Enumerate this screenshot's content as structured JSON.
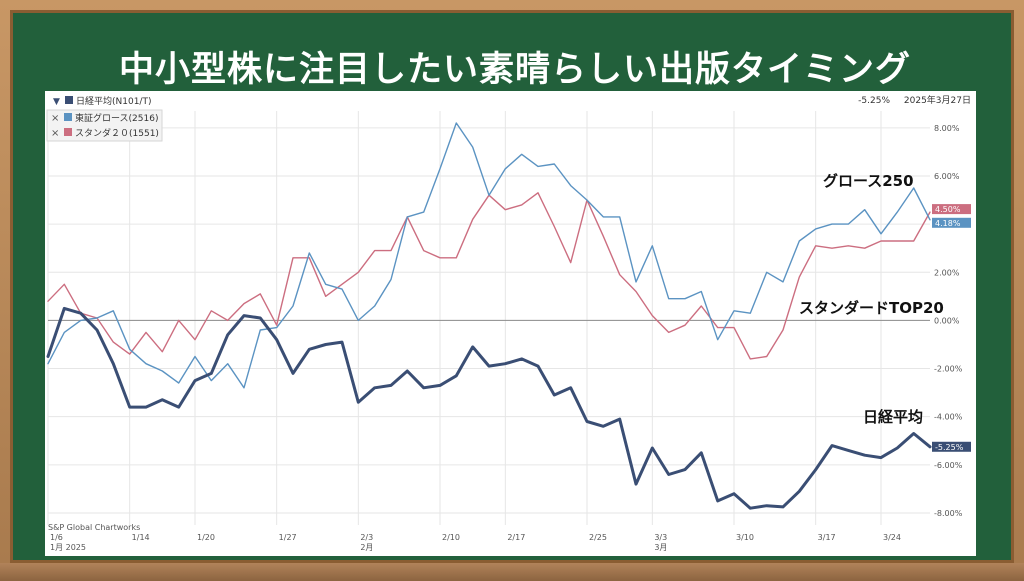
{
  "page": {
    "headline": "中小型株に注目したい素晴らしい出版タイミング"
  },
  "chart_data": {
    "type": "line",
    "legend": [
      {
        "marker": "▼",
        "label": "日経平均(N101/T)",
        "color": "#3a4e74"
      },
      {
        "marker": "×",
        "label": "東証グロース(2516)",
        "color": "#5b93c2"
      },
      {
        "marker": "×",
        "label": "スタンダ２０(1551)",
        "color": "#cc6e80"
      }
    ],
    "header_value": "-5.25%",
    "header_date": "2025年3月27日",
    "credit": "S&P Global Chartworks",
    "ylim": [
      -8.5,
      8.7
    ],
    "yticks": [
      8,
      6,
      4,
      2,
      0,
      -2,
      -4,
      -6,
      -8
    ],
    "ytick_labels": [
      "8.00%",
      "6.00%",
      "4.00%",
      "2.00%",
      "0.00%",
      "-2.00%",
      "-4.00%",
      "-6.00%",
      "-8.00%"
    ],
    "x_ticks": [
      {
        "i": 0,
        "label": "1/6",
        "sub": "1月 2025"
      },
      {
        "i": 5,
        "label": "1/14",
        "sub": ""
      },
      {
        "i": 9,
        "label": "1/20",
        "sub": ""
      },
      {
        "i": 14,
        "label": "1/27",
        "sub": ""
      },
      {
        "i": 19,
        "label": "2/3",
        "sub": "2月"
      },
      {
        "i": 24,
        "label": "2/10",
        "sub": ""
      },
      {
        "i": 28,
        "label": "2/17",
        "sub": ""
      },
      {
        "i": 33,
        "label": "2/25",
        "sub": ""
      },
      {
        "i": 37,
        "label": "3/3",
        "sub": "3月"
      },
      {
        "i": 42,
        "label": "3/10",
        "sub": ""
      },
      {
        "i": 47,
        "label": "3/17",
        "sub": ""
      },
      {
        "i": 51,
        "label": "3/24",
        "sub": ""
      }
    ],
    "n_points": 55,
    "series": [
      {
        "name": "日経平均",
        "color": "#3a4e74",
        "end_label": "-5.25%",
        "values": [
          -1.5,
          0.5,
          0.3,
          -0.4,
          -1.8,
          -3.6,
          -3.6,
          -3.3,
          -3.6,
          -2.5,
          -2.2,
          -0.6,
          0.2,
          0.1,
          -0.8,
          -2.2,
          -1.2,
          -1.0,
          -0.9,
          -3.4,
          -2.8,
          -2.7,
          -2.1,
          -2.8,
          -2.7,
          -2.3,
          -1.1,
          -1.9,
          -1.8,
          -1.6,
          -1.9,
          -3.1,
          -2.8,
          -4.2,
          -4.4,
          -4.1,
          -6.8,
          -5.3,
          -6.4,
          -6.2,
          -5.5,
          -7.5,
          -7.2,
          -7.8,
          -7.7,
          -7.75,
          -7.1,
          -6.2,
          -5.2,
          -5.4,
          -5.6,
          -5.7,
          -5.3,
          -4.7,
          -5.25
        ]
      },
      {
        "name": "東証グロース",
        "color": "#5b93c2",
        "end_label": "4.18%",
        "values": [
          -1.8,
          -0.5,
          0.0,
          0.1,
          0.4,
          -1.2,
          -1.8,
          -2.1,
          -2.6,
          -1.5,
          -2.5,
          -1.8,
          -2.8,
          -0.4,
          -0.3,
          0.6,
          2.8,
          1.5,
          1.3,
          0.0,
          0.6,
          1.7,
          4.3,
          4.5,
          6.3,
          8.2,
          7.2,
          5.2,
          6.3,
          6.9,
          6.4,
          6.5,
          5.6,
          5.0,
          4.3,
          4.3,
          1.6,
          3.1,
          0.9,
          0.9,
          1.2,
          -0.8,
          0.4,
          0.3,
          2.0,
          1.6,
          3.3,
          3.8,
          4.0,
          4.0,
          4.6,
          3.6,
          4.5,
          5.5,
          4.18
        ]
      },
      {
        "name": "スタンダ20",
        "color": "#cc6e80",
        "end_label": "4.50%",
        "values": [
          0.8,
          1.5,
          0.3,
          0.1,
          -0.9,
          -1.4,
          -0.5,
          -1.3,
          0.0,
          -0.8,
          0.4,
          0.0,
          0.7,
          1.1,
          -0.2,
          2.6,
          2.6,
          1.0,
          1.5,
          2.0,
          2.9,
          2.9,
          4.3,
          2.9,
          2.6,
          2.6,
          4.2,
          5.2,
          4.6,
          4.8,
          5.3,
          3.9,
          2.4,
          5.0,
          3.5,
          1.9,
          1.2,
          0.2,
          -0.5,
          -0.2,
          0.6,
          -0.3,
          -0.3,
          -1.6,
          -1.5,
          -0.4,
          1.8,
          3.1,
          3.0,
          3.1,
          3.0,
          3.3,
          3.3,
          3.3,
          4.5
        ]
      }
    ],
    "annotations": [
      {
        "text": "グロース250",
        "target": 1
      },
      {
        "text": "スタンダードTOP20",
        "target": 2
      },
      {
        "text": "日経平均",
        "target": 0
      }
    ]
  }
}
